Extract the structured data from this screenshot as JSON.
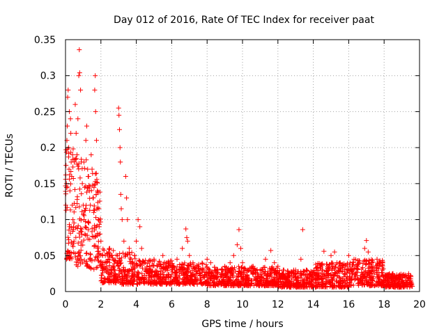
{
  "chart_data": {
    "type": "scatter",
    "title": "Day 012 of 2016, Rate Of TEC Index for receiver paat",
    "xlabel": "GPS time / hours",
    "ylabel": "ROTI / TECUs",
    "xlim": [
      0,
      20
    ],
    "ylim": [
      0,
      0.35
    ],
    "xticks": [
      0,
      2,
      4,
      6,
      8,
      10,
      12,
      14,
      16,
      18,
      20
    ],
    "yticks": [
      0,
      0.05,
      0.1,
      0.15,
      0.2,
      0.25,
      0.3,
      0.35
    ],
    "xtick_labels": [
      "0",
      "2",
      "4",
      "6",
      "8",
      "10",
      "12",
      "14",
      "16",
      "18",
      "20"
    ],
    "ytick_labels": [
      "0",
      "0.05",
      "0.1",
      "0.15",
      "0.2",
      "0.25",
      "0.3",
      "0.35"
    ],
    "grid": true,
    "marker": "+",
    "color": "#ff0000",
    "series": [
      {
        "name": "ROTI",
        "points": [
          [
            0.02,
            0.12
          ],
          [
            0.05,
            0.15
          ],
          [
            0.08,
            0.21
          ],
          [
            0.1,
            0.23
          ],
          [
            0.12,
            0.27
          ],
          [
            0.15,
            0.28
          ],
          [
            0.18,
            0.2
          ],
          [
            0.2,
            0.17
          ],
          [
            0.22,
            0.25
          ],
          [
            0.25,
            0.14
          ],
          [
            0.28,
            0.24
          ],
          [
            0.3,
            0.22
          ],
          [
            0.32,
            0.18
          ],
          [
            0.35,
            0.16
          ],
          [
            0.38,
            0.12
          ],
          [
            0.4,
            0.19
          ],
          [
            0.42,
            0.1
          ],
          [
            0.45,
            0.09
          ],
          [
            0.48,
            0.07
          ],
          [
            0.5,
            0.18
          ],
          [
            0.55,
            0.26
          ],
          [
            0.6,
            0.22
          ],
          [
            0.65,
            0.19
          ],
          [
            0.7,
            0.24
          ],
          [
            0.75,
            0.3
          ],
          [
            0.78,
            0.336
          ],
          [
            0.8,
            0.304
          ],
          [
            0.85,
            0.28
          ],
          [
            0.9,
            0.18
          ],
          [
            0.95,
            0.15
          ],
          [
            1.0,
            0.12
          ],
          [
            1.05,
            0.1
          ],
          [
            1.1,
            0.08
          ],
          [
            1.15,
            0.21
          ],
          [
            1.2,
            0.23
          ],
          [
            1.25,
            0.17
          ],
          [
            1.3,
            0.16
          ],
          [
            1.35,
            0.14
          ],
          [
            1.4,
            0.12
          ],
          [
            1.45,
            0.19
          ],
          [
            1.5,
            0.17
          ],
          [
            1.55,
            0.13
          ],
          [
            1.6,
            0.11
          ],
          [
            1.65,
            0.28
          ],
          [
            1.68,
            0.3
          ],
          [
            1.7,
            0.25
          ],
          [
            1.75,
            0.21
          ],
          [
            1.8,
            0.14
          ],
          [
            1.85,
            0.1
          ],
          [
            1.9,
            0.09
          ],
          [
            1.95,
            0.08
          ],
          [
            2.0,
            0.07
          ],
          [
            2.1,
            0.05
          ],
          [
            2.2,
            0.04
          ],
          [
            2.3,
            0.03
          ],
          [
            2.4,
            0.045
          ],
          [
            2.5,
            0.06
          ],
          [
            2.6,
            0.05
          ],
          [
            2.7,
            0.035
          ],
          [
            2.8,
            0.025
          ],
          [
            2.9,
            0.04
          ],
          [
            3.0,
            0.255
          ],
          [
            3.02,
            0.245
          ],
          [
            3.05,
            0.225
          ],
          [
            3.08,
            0.2
          ],
          [
            3.1,
            0.18
          ],
          [
            3.12,
            0.135
          ],
          [
            3.15,
            0.115
          ],
          [
            3.2,
            0.1
          ],
          [
            3.3,
            0.07
          ],
          [
            3.4,
            0.16
          ],
          [
            3.45,
            0.13
          ],
          [
            3.5,
            0.1
          ],
          [
            3.6,
            0.06
          ],
          [
            3.7,
            0.045
          ],
          [
            3.8,
            0.03
          ],
          [
            3.9,
            0.05
          ],
          [
            4.0,
            0.07
          ],
          [
            4.1,
            0.1
          ],
          [
            4.2,
            0.09
          ],
          [
            4.3,
            0.06
          ],
          [
            4.5,
            0.04
          ],
          [
            4.7,
            0.03
          ],
          [
            5.0,
            0.045
          ],
          [
            5.2,
            0.035
          ],
          [
            5.5,
            0.05
          ],
          [
            5.7,
            0.04
          ],
          [
            6.0,
            0.03
          ],
          [
            6.3,
            0.045
          ],
          [
            6.6,
            0.06
          ],
          [
            6.8,
            0.087
          ],
          [
            6.85,
            0.075
          ],
          [
            6.9,
            0.07
          ],
          [
            7.0,
            0.05
          ],
          [
            7.2,
            0.04
          ],
          [
            7.5,
            0.035
          ],
          [
            7.8,
            0.03
          ],
          [
            8.0,
            0.045
          ],
          [
            8.2,
            0.04
          ],
          [
            8.5,
            0.03
          ],
          [
            8.8,
            0.025
          ],
          [
            9.0,
            0.035
          ],
          [
            9.3,
            0.04
          ],
          [
            9.5,
            0.05
          ],
          [
            9.7,
            0.065
          ],
          [
            9.8,
            0.086
          ],
          [
            9.9,
            0.06
          ],
          [
            10.0,
            0.04
          ],
          [
            10.3,
            0.03
          ],
          [
            10.6,
            0.035
          ],
          [
            11.0,
            0.03
          ],
          [
            11.3,
            0.045
          ],
          [
            11.6,
            0.057
          ],
          [
            11.8,
            0.04
          ],
          [
            12.0,
            0.035
          ],
          [
            12.3,
            0.03
          ],
          [
            12.6,
            0.025
          ],
          [
            13.0,
            0.03
          ],
          [
            13.3,
            0.045
          ],
          [
            13.4,
            0.086
          ],
          [
            13.6,
            0.03
          ],
          [
            13.9,
            0.02
          ],
          [
            14.2,
            0.018
          ],
          [
            14.5,
            0.03
          ],
          [
            14.6,
            0.056
          ],
          [
            14.8,
            0.035
          ],
          [
            15.0,
            0.05
          ],
          [
            15.2,
            0.055
          ],
          [
            15.5,
            0.04
          ],
          [
            15.8,
            0.035
          ],
          [
            16.0,
            0.05
          ],
          [
            16.3,
            0.045
          ],
          [
            16.6,
            0.04
          ],
          [
            16.9,
            0.06
          ],
          [
            17.0,
            0.071
          ],
          [
            17.1,
            0.055
          ],
          [
            17.3,
            0.04
          ],
          [
            17.6,
            0.045
          ],
          [
            17.9,
            0.03
          ],
          [
            18.2,
            0.02
          ],
          [
            18.5,
            0.025
          ],
          [
            18.8,
            0.02
          ],
          [
            19.1,
            0.022
          ],
          [
            19.4,
            0.018
          ],
          [
            19.5,
            0.015
          ]
        ]
      }
    ],
    "dense_band": {
      "description_only": false,
      "segments": [
        {
          "x_from": 0.0,
          "x_to": 0.6,
          "y_low": 0.045,
          "y_high": 0.2
        },
        {
          "x_from": 0.6,
          "x_to": 1.3,
          "y_low": 0.035,
          "y_high": 0.19
        },
        {
          "x_from": 1.3,
          "x_to": 2.0,
          "y_low": 0.03,
          "y_high": 0.17
        },
        {
          "x_from": 2.0,
          "x_to": 3.0,
          "y_low": 0.012,
          "y_high": 0.06
        },
        {
          "x_from": 3.0,
          "x_to": 4.0,
          "y_low": 0.01,
          "y_high": 0.055
        },
        {
          "x_from": 4.0,
          "x_to": 6.0,
          "y_low": 0.01,
          "y_high": 0.045
        },
        {
          "x_from": 6.0,
          "x_to": 8.0,
          "y_low": 0.01,
          "y_high": 0.04
        },
        {
          "x_from": 8.0,
          "x_to": 10.0,
          "y_low": 0.008,
          "y_high": 0.035
        },
        {
          "x_from": 10.0,
          "x_to": 12.0,
          "y_low": 0.008,
          "y_high": 0.035
        },
        {
          "x_from": 12.0,
          "x_to": 14.0,
          "y_low": 0.006,
          "y_high": 0.03
        },
        {
          "x_from": 14.0,
          "x_to": 16.0,
          "y_low": 0.006,
          "y_high": 0.04
        },
        {
          "x_from": 16.0,
          "x_to": 18.0,
          "y_low": 0.008,
          "y_high": 0.045
        },
        {
          "x_from": 18.0,
          "x_to": 19.6,
          "y_low": 0.006,
          "y_high": 0.025
        }
      ],
      "points_per_unit_x": 120
    }
  }
}
